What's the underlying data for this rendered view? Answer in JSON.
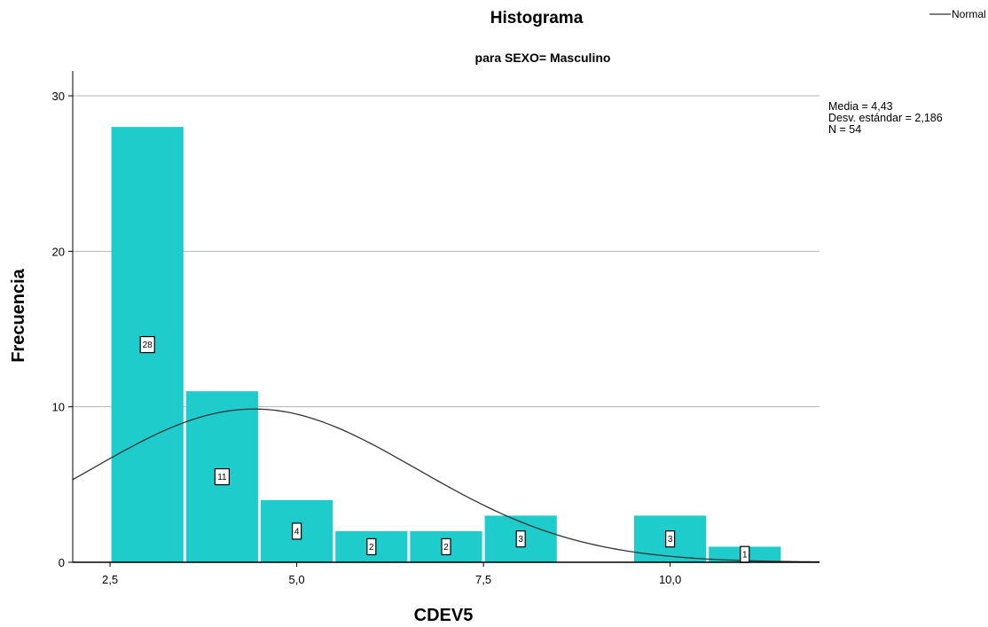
{
  "chart_data": {
    "type": "bar",
    "title": "Histograma",
    "subtitle": "para SEXO= Masculino",
    "xlabel": "CDEV5",
    "ylabel": "Frecuencia",
    "x_ticks": [
      "2,5",
      "5,0",
      "7,5",
      "10,0"
    ],
    "x_tick_values": [
      2.5,
      5.0,
      7.5,
      10.0
    ],
    "y_ticks": [
      "0",
      "10",
      "20",
      "30"
    ],
    "y_tick_values": [
      0,
      10,
      20,
      30
    ],
    "xlim": [
      2.0,
      12.0
    ],
    "ylim": [
      0,
      31.6
    ],
    "grid": "horizontal",
    "bar_color": "#1fcccc",
    "curve_color": "#333333",
    "bins": [
      {
        "x0": 2.5,
        "x1": 3.5,
        "count": 28,
        "label": "28"
      },
      {
        "x0": 3.5,
        "x1": 4.5,
        "count": 11,
        "label": "11"
      },
      {
        "x0": 4.5,
        "x1": 5.5,
        "count": 4,
        "label": "4"
      },
      {
        "x0": 5.5,
        "x1": 6.5,
        "count": 2,
        "label": "2"
      },
      {
        "x0": 6.5,
        "x1": 7.5,
        "count": 2,
        "label": "2"
      },
      {
        "x0": 7.5,
        "x1": 8.5,
        "count": 3,
        "label": "3"
      },
      {
        "x0": 9.5,
        "x1": 10.5,
        "count": 3,
        "label": "3"
      },
      {
        "x0": 10.5,
        "x1": 11.5,
        "count": 1,
        "label": "1"
      }
    ],
    "normal_curve": {
      "mean": 4.43,
      "sd": 2.186,
      "n": 54,
      "bin_width": 1.0
    },
    "legend": {
      "entries": [
        "Normal"
      ],
      "placement": "top-right"
    },
    "stats": [
      "Media = 4,43",
      "Desv. estándar = 2,186",
      "N = 54"
    ]
  }
}
